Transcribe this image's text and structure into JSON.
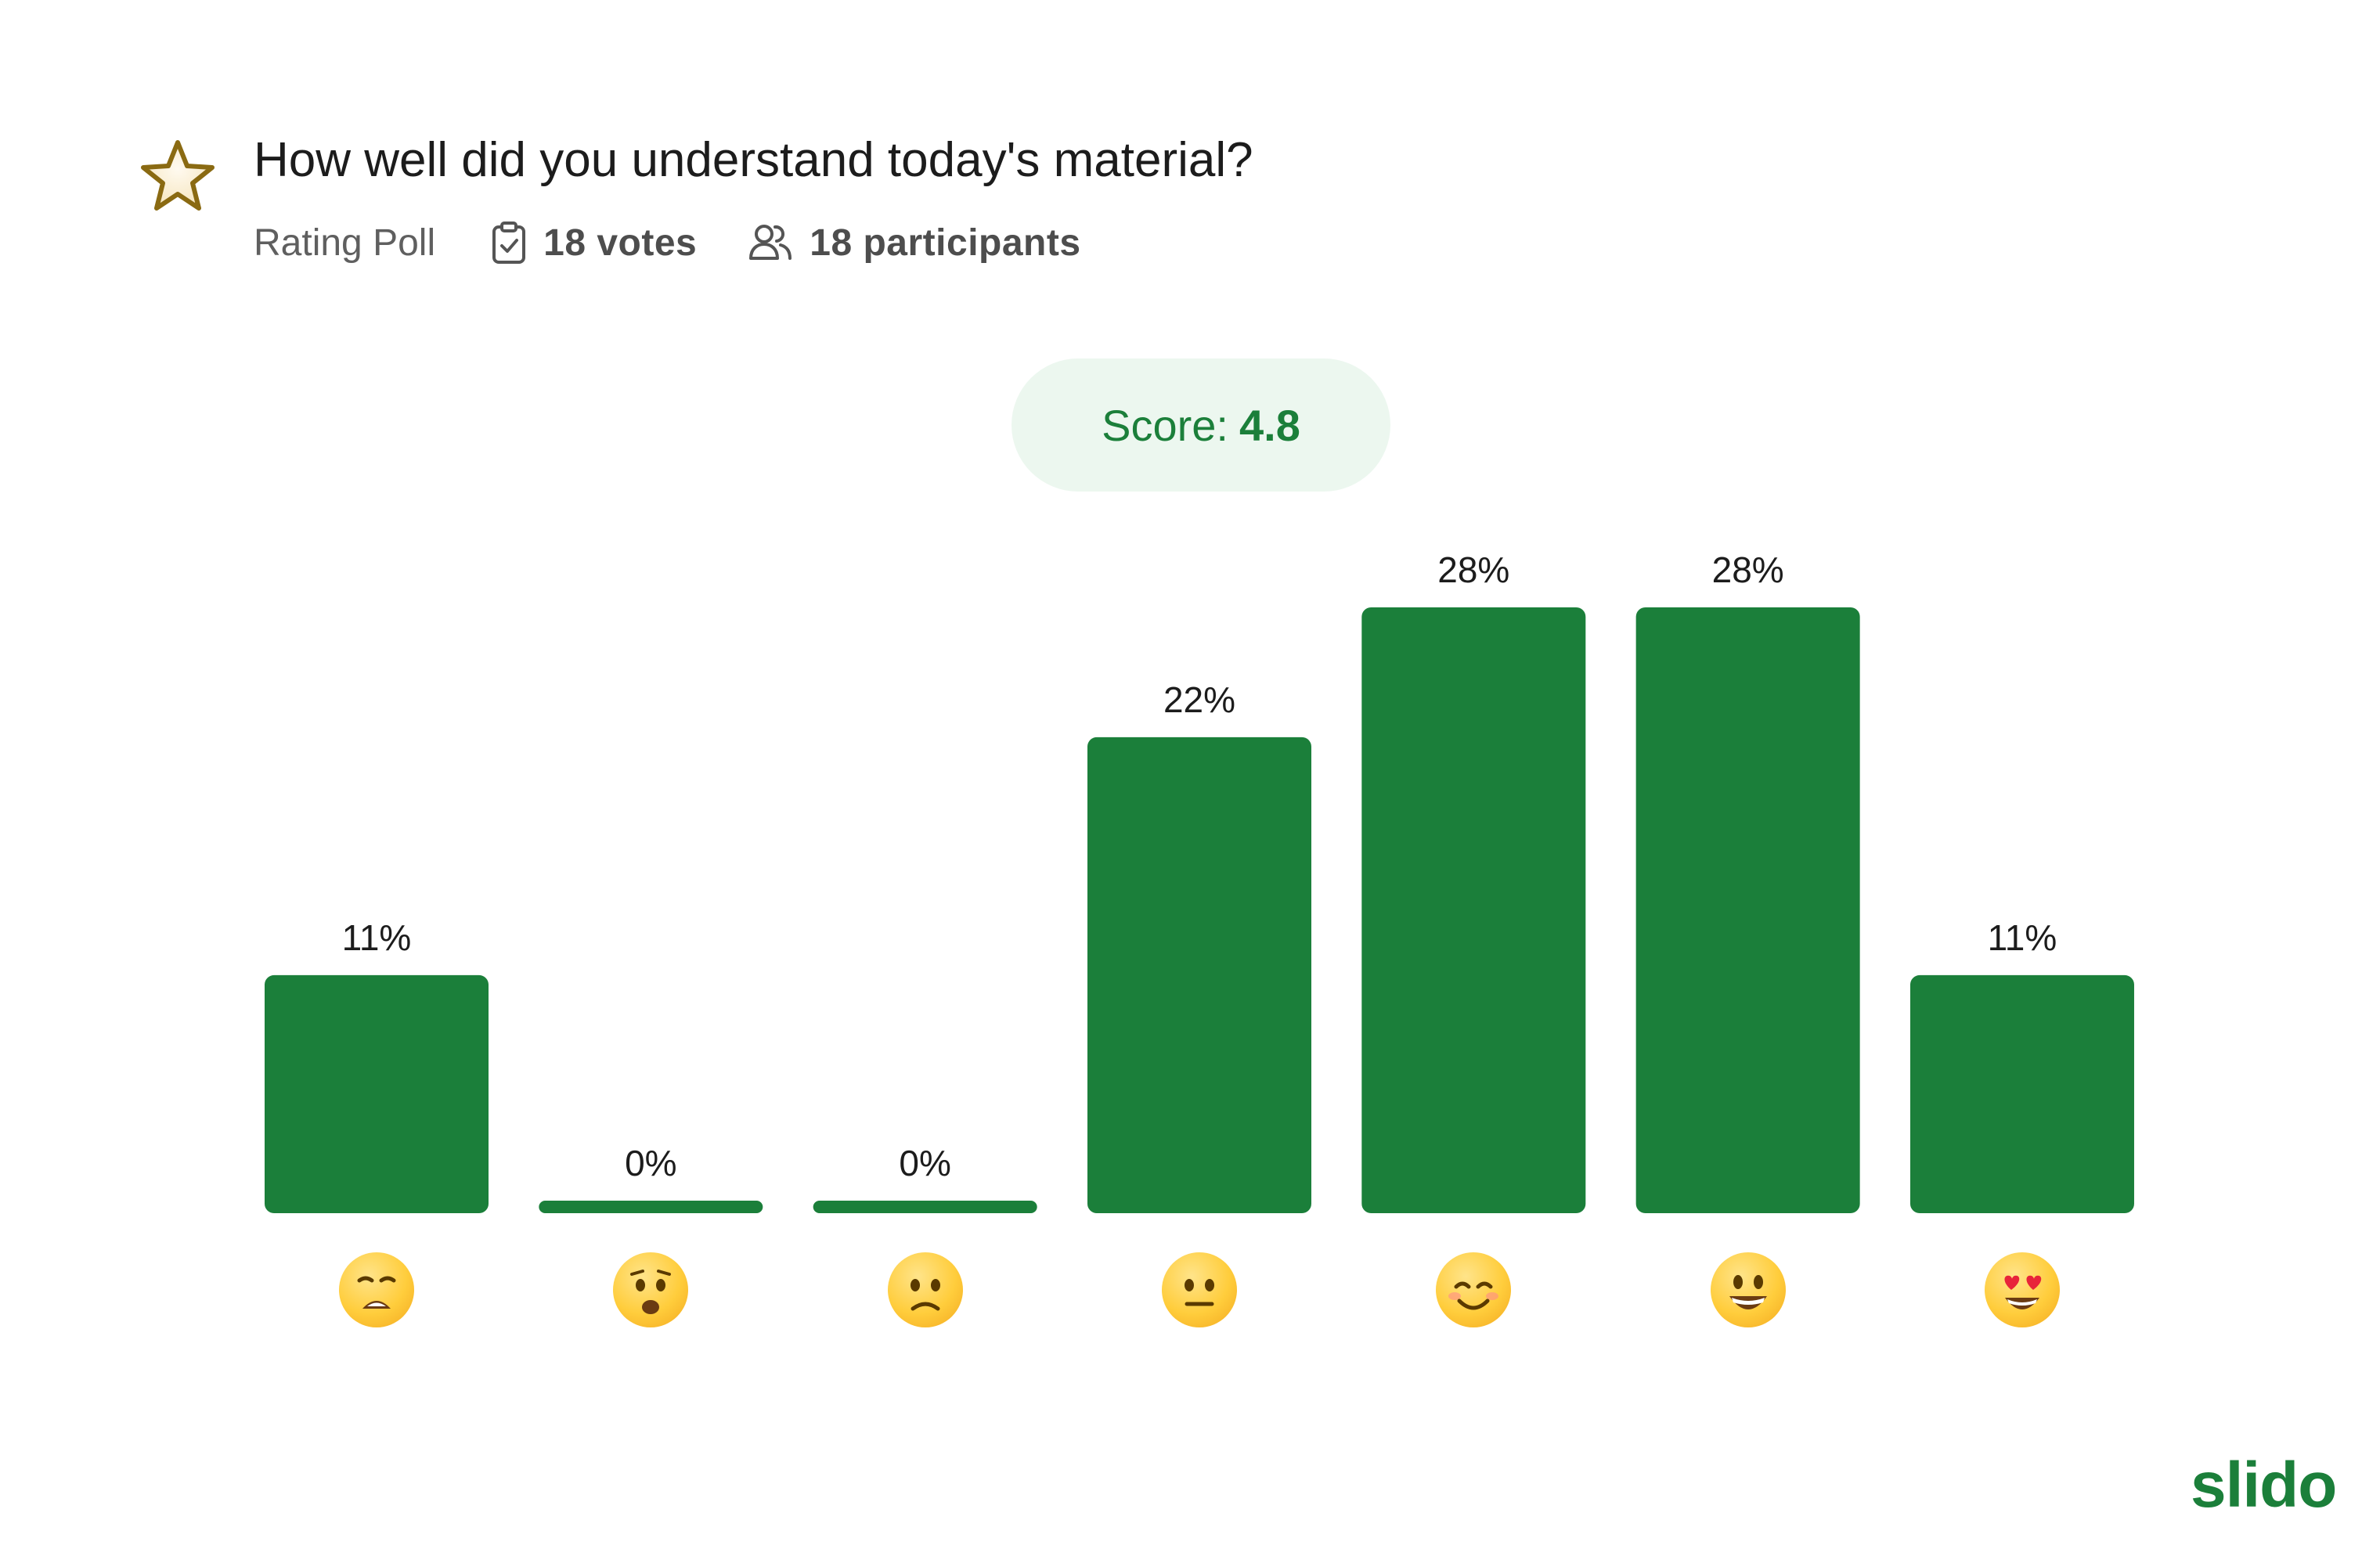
{
  "poll": {
    "question": "How well did you understand today's material?",
    "type": "Rating Poll",
    "votes": "18 votes",
    "participants": "18 participants"
  },
  "score": {
    "label": "Score:",
    "value": "4.8"
  },
  "brand": {
    "logo_text": "slido",
    "accent_color": "#1b7f3a",
    "bar_color": "#1b7f3a"
  },
  "icons": {
    "poll_type": "star-icon",
    "votes": "clipboard-check-icon",
    "participants": "people-icon"
  },
  "chart_data": {
    "type": "bar",
    "categories": [
      "weary-face",
      "anguished-face",
      "frowning-face",
      "neutral-face",
      "smiling-face",
      "grinning-face",
      "heart-eyes-face"
    ],
    "values": [
      11,
      0,
      0,
      22,
      28,
      28,
      11
    ],
    "value_labels": [
      "11%",
      "0%",
      "0%",
      "22%",
      "28%",
      "28%",
      "11%"
    ],
    "unit": "%",
    "ylim": [
      0,
      28
    ],
    "grid": false,
    "legend": "none"
  }
}
